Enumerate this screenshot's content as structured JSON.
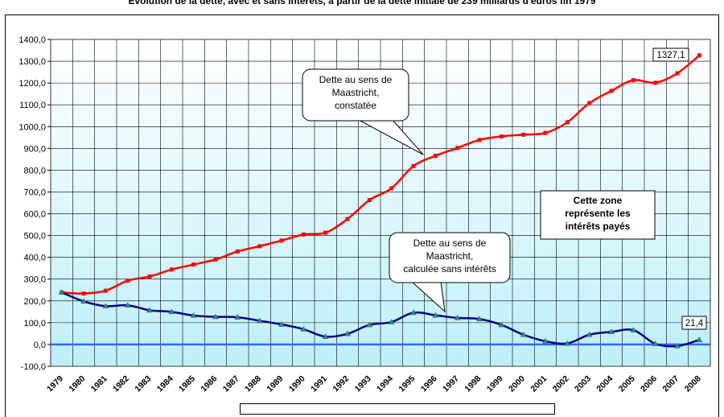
{
  "title": "Evolution de la dette, avec et sans intérêts, à partir de la dette initiale de 239 milliards d'euros fin 1979",
  "chart_data": {
    "type": "line",
    "years": [
      "1979",
      "1980",
      "1981",
      "1982",
      "1983",
      "1984",
      "1985",
      "1986",
      "1987",
      "1988",
      "1989",
      "1990",
      "1991",
      "1992",
      "1993",
      "1994",
      "1995",
      "1996",
      "1997",
      "1998",
      "1999",
      "2000",
      "2001",
      "2002",
      "2003",
      "2004",
      "2005",
      "2006",
      "2007",
      "2008"
    ],
    "y_ticks": [
      "1400,0",
      "1300,0",
      "1200,0",
      "1100,0",
      "1000,0",
      "900,0",
      "800,0",
      "700,0",
      "600,0",
      "500,0",
      "400,0",
      "300,0",
      "200,0",
      "100,0",
      "0,0",
      "-100,0"
    ],
    "ylim": [
      -100,
      1400
    ],
    "grid": true,
    "series": [
      {
        "name": "Dette au sens de Maastricht, constatée",
        "color": "#ff0000",
        "marker": "square",
        "values": [
          239,
          234,
          247,
          293,
          312,
          344,
          367,
          390,
          427,
          451,
          477,
          505,
          513,
          576,
          663,
          717,
          819,
          866,
          902,
          939,
          955,
          963,
          971,
          1020,
          1108,
          1164,
          1213,
          1201,
          1245,
          1327.1
        ]
      },
      {
        "name": "Dette au sens de Maastricht, calculée sans intérêts",
        "color": "#000080",
        "marker": "triangle",
        "values": [
          239,
          198,
          176,
          180,
          157,
          150,
          133,
          127,
          125,
          109,
          92,
          70,
          36,
          49,
          90,
          103,
          146,
          134,
          122,
          117,
          90,
          45,
          15,
          5,
          45,
          58,
          66,
          3,
          -7,
          21.4
        ]
      }
    ],
    "zero_line_color": "#3366ff",
    "plot_background": "#e8f8fc",
    "annotations": {
      "callout_constatee": [
        "Dette au sens de",
        "Maastricht,",
        "constatée"
      ],
      "callout_sans_interets": [
        "Dette au sens de",
        "Maastricht,",
        "calculée sans intérêts"
      ],
      "zone_box": [
        "Cette zone",
        "représente les",
        "intérêts payés"
      ],
      "last_value_red": "1327,1",
      "last_value_blue": "21,4"
    }
  }
}
